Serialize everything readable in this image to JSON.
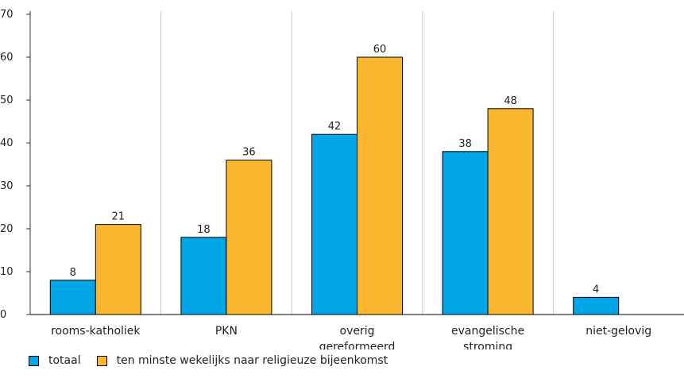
{
  "chart_data": {
    "type": "bar",
    "categories": [
      [
        "rooms-katholiek"
      ],
      [
        "PKN"
      ],
      [
        "overig",
        "gereformeerd"
      ],
      [
        "evangelische",
        "stroming"
      ],
      [
        "niet-gelovig"
      ]
    ],
    "series": [
      {
        "name": "totaal",
        "color": "#00a6e6",
        "values": [
          8,
          18,
          42,
          38,
          4
        ]
      },
      {
        "name": "ten minste wekelijks naar religieuze bijeenkomst",
        "color": "#fbb72f",
        "values": [
          21,
          36,
          60,
          48,
          null
        ]
      }
    ],
    "ylim": [
      0,
      70
    ],
    "yticks": [
      0,
      10,
      20,
      30,
      40,
      50,
      60,
      70
    ],
    "grid": "vertical category separators",
    "legend_position": "bottom-left"
  }
}
